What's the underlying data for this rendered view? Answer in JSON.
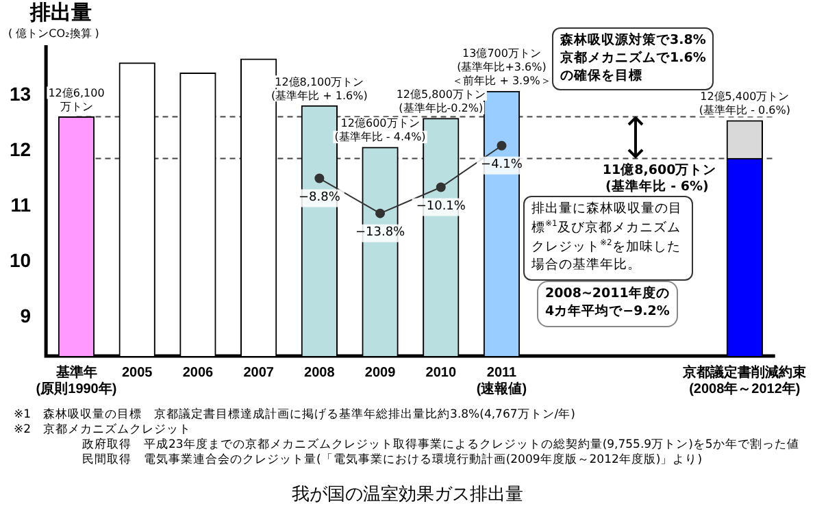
{
  "chart_data": {
    "type": "bar",
    "title": "我が国の温室効果ガス排出量",
    "ylabel": "排出量",
    "categories": [
      "基準年\n(原則1990年)",
      "2005",
      "2006",
      "2007",
      "2008",
      "2009",
      "2010",
      "2011\n(速報値)",
      null,
      null,
      null,
      "京都議定書削減約束\n(2008年～2012年)"
    ],
    "ylim": [
      8.3,
      13.9
    ],
    "yticks": [
      9,
      10,
      11,
      12,
      13
    ],
    "grid": false,
    "legend": false,
    "series": [
      {
        "colors": [
          "#ff99ff",
          "#ffffff",
          "#ffffff",
          "#ffffff",
          "#b9dfe0",
          "#b9dfe0",
          "#b9dfe0",
          "#99ccff",
          null,
          null,
          null,
          "#0000ff"
        ],
        "values": [
          12.61,
          13.58,
          13.4,
          13.65,
          12.81,
          12.06,
          12.58,
          13.07,
          null,
          null,
          null,
          11.86
        ]
      },
      {
        "color": "#d9d9d9",
        "base": [
          null,
          null,
          null,
          null,
          null,
          null,
          null,
          null,
          null,
          null,
          null,
          11.86
        ],
        "values": [
          null,
          null,
          null,
          null,
          null,
          null,
          null,
          null,
          null,
          null,
          null,
          0.68
        ]
      },
      {
        "type": "line",
        "color": "#333333",
        "marker": "circle",
        "values": [
          null,
          null,
          null,
          null,
          11.5,
          10.87,
          11.34,
          12.09,
          null,
          null,
          null,
          null
        ]
      }
    ],
    "ref_lines": [
      {
        "axis": "y",
        "value": 12.61,
        "line_style": "dashed"
      },
      {
        "axis": "y",
        "value": 11.86,
        "line_style": "dashed",
        "label": "11億8,600万トン"
      }
    ],
    "annotations": [
      "( 億トンCO₂換算 )",
      "森林吸収源対策で3.8%\n京都メカニズムで1.6%\nの確保を目標",
      "排出量に森林吸収量の目標$^{※1}$及び京都メカニズムクレジット$^{※2}$を加味した場合の基準年比。",
      "2008~2011年度の\n4カ年平均で−9.2%",
      "(基準年比 - 6%)",
      {
        "text": "12億6,100万トン",
        "x": "基準年\n(原則1990年)",
        "y": 12.61
      },
      {
        "text": "12億8,100万トン",
        "x": "2008",
        "y": 12.81
      },
      {
        "text": "(基準年比 + 1.6%)",
        "x": "2008",
        "y": 12.81
      },
      {
        "text": "12億600万トン",
        "x": "2009",
        "y": 12.06
      },
      {
        "text": "(基準年比 - 4.4%)",
        "x": "2009",
        "y": 12.06
      },
      {
        "text": "12億5,800万トン",
        "x": "2010",
        "y": 12.58
      },
      {
        "text": "(基準年比-0.2%)",
        "x": "2010",
        "y": 12.58
      },
      {
        "text": "13億700万トン",
        "x": "2011\n(速報値)",
        "y": 13.07
      },
      {
        "text": "(基準年比+3.6%)",
        "x": "2011\n(速報値)",
        "y": 13.07
      },
      {
        "text": "＜前年比 + 3.9%＞",
        "x": "2011\n(速報値)",
        "y": 13.07
      },
      {
        "text": "12億5,400万トン",
        "x": "京都議定書削減約束\n(2008年～2012年)",
        "y": 12.54
      },
      {
        "text": "(基準年比 - 0.6%)",
        "x": "京都議定書削減約束\n(2008年～2012年)",
        "y": 12.54
      },
      {
        "text": "−8.8%",
        "x": "2008",
        "y": 11.5
      },
      {
        "text": "−13.8%",
        "x": "2009",
        "y": 10.87
      },
      {
        "text": "−10.1%",
        "x": "2010",
        "y": 11.34
      },
      {
        "text": "−4.1%",
        "x": "2011\n(速報値)",
        "y": 12.09
      },
      "※1　森林吸収量の目標　京都議定書目標達成計画に掲げる基準年総排出量比約3.8%(4,767万トン/年)",
      "※2　京都メカニズムクレジット",
      "政府取得　平成23年度までの京都メカニズムクレジット取得事業によるクレジットの総契約量(9,755.9万トン)を5か年で割った値",
      "民間取得　電気事業連合会のクレジット量(「電気事業における環境行動計画(2009年度版～2012年度版)」より)"
    ]
  }
}
